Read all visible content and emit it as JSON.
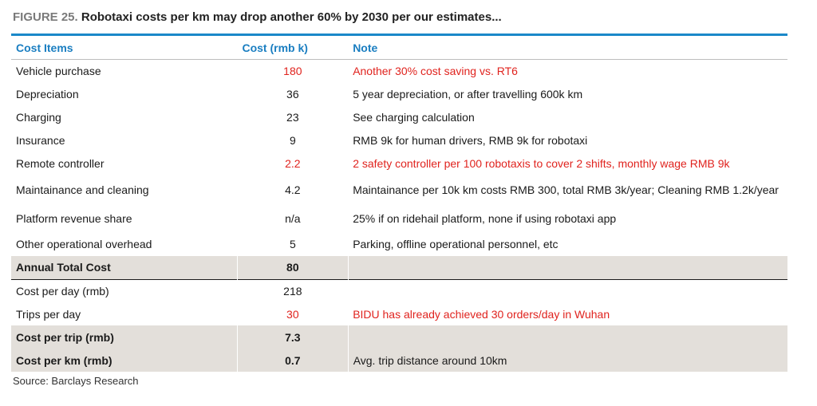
{
  "figure": {
    "label": "FIGURE 25.",
    "title": "Robotaxi costs per km may drop another 60% by 2030 per our estimates...",
    "source": "Source: Barclays Research"
  },
  "table": {
    "headers": {
      "item": "Cost Items",
      "cost": "Cost (rmb k)",
      "note": "Note"
    },
    "rows": [
      {
        "item": "Vehicle purchase",
        "cost": "180",
        "note": "Another 30% cost saving vs. RT6",
        "highlight": true
      },
      {
        "item": "Depreciation",
        "cost": "36",
        "note": "5 year depreciation, or after travelling 600k km",
        "highlight": false
      },
      {
        "item": "Charging",
        "cost": "23",
        "note": "See charging calculation",
        "highlight": false
      },
      {
        "item": "Insurance",
        "cost": "9",
        "note": "RMB 9k for human drivers, RMB 9k for robotaxi",
        "highlight": false
      },
      {
        "item": "Remote controller",
        "cost": "2.2",
        "note": "2 safety controller per 100 robotaxis to cover 2 shifts, monthly wage RMB 9k",
        "highlight": true
      },
      {
        "item": "Maintainance and cleaning",
        "cost": "4.2",
        "note": "Maintainance per 10k km costs RMB 300, total RMB 3k/year; Cleaning RMB 1.2k/year",
        "highlight": false
      },
      {
        "item": "Platform revenue share",
        "cost": "n/a",
        "note": "25% if on ridehail platform, none if using robotaxi app",
        "highlight": false
      },
      {
        "item": "Other operational overhead",
        "cost": "5",
        "note": "Parking, offline operational personnel, etc",
        "highlight": false
      },
      {
        "item": "Annual Total Cost",
        "cost": "80",
        "note": "",
        "highlight": false
      },
      {
        "item": "Cost per day (rmb)",
        "cost": "218",
        "note": "",
        "highlight": false
      },
      {
        "item": "Trips per day",
        "cost": "30",
        "note": "BIDU has already achieved 30 orders/day in Wuhan",
        "highlight": true
      },
      {
        "item": "Cost per trip (rmb)",
        "cost": "7.3",
        "note": "",
        "highlight": false
      },
      {
        "item": "Cost per km (rmb)",
        "cost": "0.7",
        "note": "Avg. trip distance around 10km",
        "highlight": false
      }
    ]
  },
  "colors": {
    "accent": "#1a88c9",
    "highlight_text": "#e0231e",
    "total_fill": "#e3dfda"
  }
}
